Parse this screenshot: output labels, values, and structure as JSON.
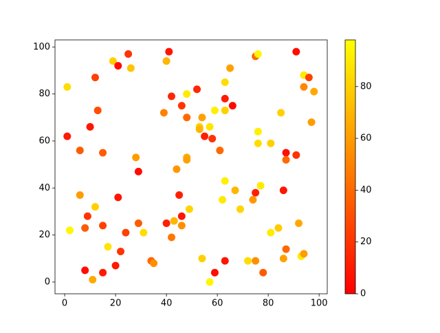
{
  "chart_data": {
    "type": "scatter",
    "x": [
      1,
      1,
      2,
      6,
      6,
      8,
      8,
      9,
      10,
      11,
      12,
      12,
      13,
      15,
      15,
      15,
      17,
      19,
      20,
      21,
      21,
      22,
      24,
      25,
      26,
      28,
      29,
      29,
      31,
      34,
      35,
      39,
      40,
      40,
      41,
      42,
      42,
      43,
      44,
      45,
      46,
      46,
      46,
      48,
      48,
      48,
      48,
      49,
      52,
      53,
      53,
      54,
      54,
      55,
      57,
      57,
      58,
      59,
      59,
      61,
      62,
      63,
      63,
      63,
      63,
      63,
      65,
      66,
      67,
      69,
      72,
      74,
      75,
      76,
      75,
      75,
      76,
      76,
      77,
      78,
      81,
      81,
      84,
      85,
      86,
      86,
      87,
      87,
      87,
      91,
      91,
      92,
      93,
      94,
      94,
      94,
      96,
      97,
      98
    ],
    "values": [
      83,
      62,
      22,
      56,
      37,
      23,
      5,
      28,
      66,
      1,
      87,
      32,
      73,
      55,
      24,
      4,
      15,
      94,
      7,
      92,
      36,
      13,
      21,
      97,
      91,
      53,
      47,
      25,
      21,
      9,
      8,
      72,
      94,
      25,
      98,
      79,
      19,
      26,
      48,
      37,
      75,
      28,
      24,
      80,
      70,
      53,
      52,
      31,
      82,
      66,
      65,
      70,
      10,
      62,
      66,
      0,
      61,
      73,
      4,
      56,
      35,
      85,
      78,
      73,
      43,
      9,
      91,
      75,
      39,
      31,
      9,
      35,
      96,
      97,
      38,
      9,
      64,
      59,
      41,
      4,
      59,
      21,
      23,
      72,
      10,
      39,
      55,
      52,
      14,
      98,
      54,
      25,
      11,
      12,
      88,
      83,
      87,
      68,
      81
    ],
    "color_values": [
      85,
      10,
      95,
      35,
      60,
      35,
      5,
      20,
      8,
      65,
      25,
      80,
      30,
      35,
      25,
      10,
      88,
      80,
      10,
      5,
      8,
      20,
      25,
      20,
      75,
      60,
      5,
      35,
      85,
      40,
      55,
      50,
      70,
      12,
      8,
      15,
      45,
      70,
      58,
      12,
      20,
      8,
      55,
      90,
      40,
      65,
      62,
      82,
      15,
      80,
      70,
      62,
      80,
      12,
      88,
      95,
      20,
      92,
      5,
      40,
      90,
      85,
      10,
      80,
      92,
      8,
      62,
      3,
      70,
      82,
      85,
      58,
      40,
      95,
      12,
      55,
      92,
      85,
      90,
      35,
      80,
      90,
      78,
      80,
      62,
      8,
      5,
      40,
      40,
      5,
      20,
      65,
      90,
      60,
      90,
      52,
      25,
      60,
      65
    ],
    "colormap": [
      "#ff0000",
      "#ffff00"
    ],
    "clim": [
      0,
      98
    ],
    "cticks": [
      0,
      20,
      40,
      60,
      80
    ],
    "xlim": [
      -3.8,
      103.2
    ],
    "xticks": [
      0,
      20,
      40,
      60,
      80,
      100
    ],
    "ylim": [
      -5,
      103
    ],
    "yticks": [
      0,
      20,
      40,
      60,
      80,
      100
    ],
    "grid": false
  }
}
